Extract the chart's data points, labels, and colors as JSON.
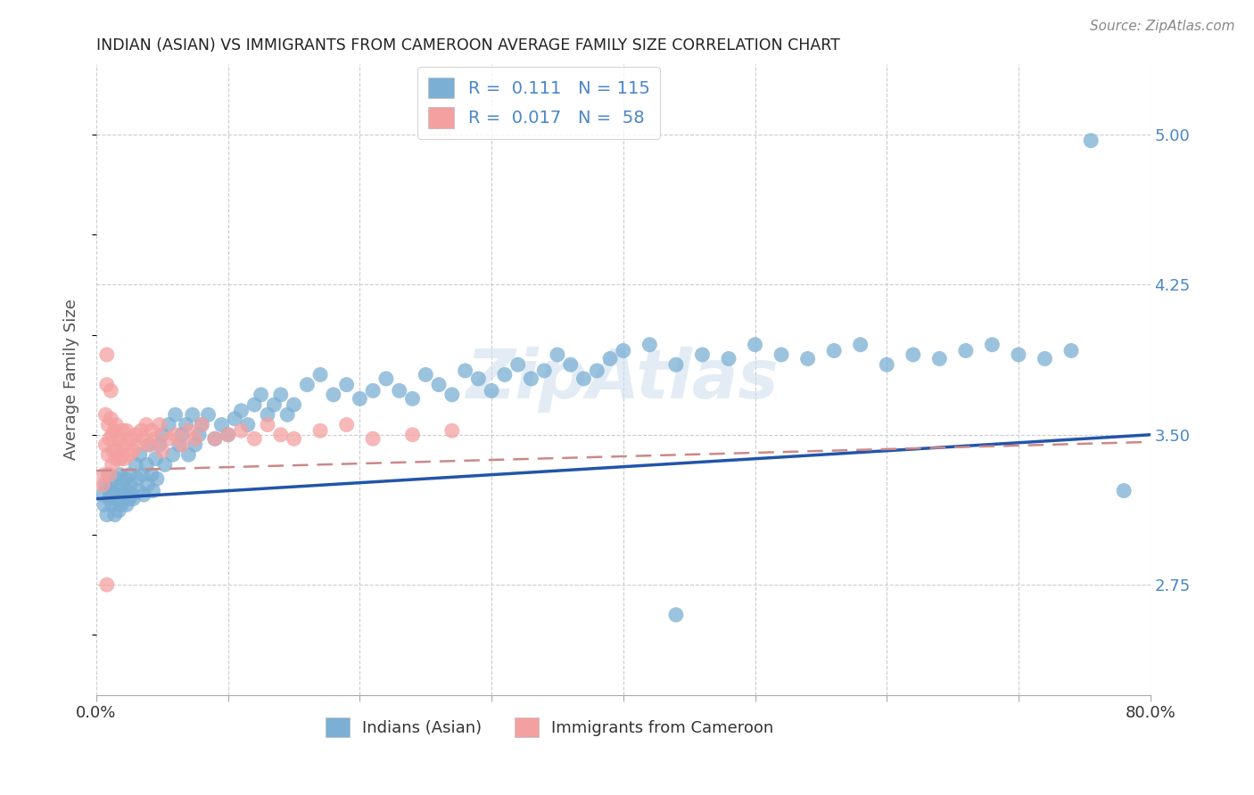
{
  "title": "INDIAN (ASIAN) VS IMMIGRANTS FROM CAMEROON AVERAGE FAMILY SIZE CORRELATION CHART",
  "source": "Source: ZipAtlas.com",
  "ylabel": "Average Family Size",
  "xlim": [
    0.0,
    0.8
  ],
  "ylim": [
    2.2,
    5.35
  ],
  "yticks": [
    2.75,
    3.5,
    4.25,
    5.0
  ],
  "xticks": [
    0.0,
    0.1,
    0.2,
    0.3,
    0.4,
    0.5,
    0.6,
    0.7,
    0.8
  ],
  "xtick_labels": [
    "0.0%",
    "",
    "",
    "",
    "",
    "",
    "",
    "",
    "80.0%"
  ],
  "color_blue": "#7bafd4",
  "color_pink": "#f4a0a0",
  "color_blue_text": "#4a86c8",
  "trend_blue": "#2255aa",
  "trend_pink": "#cc8888",
  "legend_label_blue": "Indians (Asian)",
  "legend_label_pink": "Immigrants from Cameroon",
  "grid_color": "#cccccc",
  "background_color": "#ffffff",
  "R_blue": 0.111,
  "N_blue": 115,
  "R_pink": 0.017,
  "N_pink": 58,
  "blue_x": [
    0.005,
    0.006,
    0.007,
    0.008,
    0.009,
    0.01,
    0.01,
    0.011,
    0.012,
    0.013,
    0.014,
    0.015,
    0.015,
    0.016,
    0.017,
    0.018,
    0.018,
    0.019,
    0.02,
    0.02,
    0.021,
    0.022,
    0.023,
    0.024,
    0.025,
    0.025,
    0.026,
    0.027,
    0.028,
    0.03,
    0.031,
    0.032,
    0.033,
    0.035,
    0.036,
    0.038,
    0.039,
    0.04,
    0.042,
    0.043,
    0.045,
    0.046,
    0.048,
    0.05,
    0.052,
    0.055,
    0.058,
    0.06,
    0.063,
    0.065,
    0.068,
    0.07,
    0.073,
    0.075,
    0.078,
    0.08,
    0.085,
    0.09,
    0.095,
    0.1,
    0.105,
    0.11,
    0.115,
    0.12,
    0.125,
    0.13,
    0.135,
    0.14,
    0.145,
    0.15,
    0.16,
    0.17,
    0.18,
    0.19,
    0.2,
    0.21,
    0.22,
    0.23,
    0.24,
    0.25,
    0.26,
    0.27,
    0.28,
    0.29,
    0.3,
    0.31,
    0.32,
    0.33,
    0.34,
    0.35,
    0.36,
    0.37,
    0.38,
    0.39,
    0.4,
    0.42,
    0.44,
    0.46,
    0.48,
    0.5,
    0.52,
    0.54,
    0.56,
    0.58,
    0.6,
    0.62,
    0.64,
    0.66,
    0.68,
    0.7,
    0.72,
    0.74,
    0.755,
    0.78,
    0.44
  ],
  "blue_y": [
    3.2,
    3.15,
    3.25,
    3.1,
    3.3,
    3.22,
    3.18,
    3.25,
    3.15,
    3.2,
    3.1,
    3.28,
    3.18,
    3.22,
    3.12,
    3.2,
    3.3,
    3.15,
    3.25,
    3.18,
    3.2,
    3.28,
    3.15,
    3.22,
    3.3,
    3.18,
    3.25,
    3.2,
    3.18,
    3.35,
    3.28,
    3.22,
    3.4,
    3.3,
    3.2,
    3.35,
    3.25,
    3.45,
    3.3,
    3.22,
    3.38,
    3.28,
    3.45,
    3.5,
    3.35,
    3.55,
    3.4,
    3.6,
    3.45,
    3.5,
    3.55,
    3.4,
    3.6,
    3.45,
    3.5,
    3.55,
    3.6,
    3.48,
    3.55,
    3.5,
    3.58,
    3.62,
    3.55,
    3.65,
    3.7,
    3.6,
    3.65,
    3.7,
    3.6,
    3.65,
    3.75,
    3.8,
    3.7,
    3.75,
    3.68,
    3.72,
    3.78,
    3.72,
    3.68,
    3.8,
    3.75,
    3.7,
    3.82,
    3.78,
    3.72,
    3.8,
    3.85,
    3.78,
    3.82,
    3.9,
    3.85,
    3.78,
    3.82,
    3.88,
    3.92,
    3.95,
    3.85,
    3.9,
    3.88,
    3.95,
    3.9,
    3.88,
    3.92,
    3.95,
    3.85,
    3.9,
    3.88,
    3.92,
    3.95,
    3.9,
    3.88,
    3.92,
    4.97,
    3.22,
    2.6
  ],
  "pink_x": [
    0.005,
    0.006,
    0.007,
    0.007,
    0.008,
    0.008,
    0.009,
    0.009,
    0.01,
    0.01,
    0.011,
    0.011,
    0.012,
    0.012,
    0.013,
    0.014,
    0.015,
    0.015,
    0.016,
    0.017,
    0.018,
    0.019,
    0.02,
    0.021,
    0.022,
    0.023,
    0.025,
    0.026,
    0.028,
    0.03,
    0.032,
    0.034,
    0.036,
    0.038,
    0.04,
    0.042,
    0.045,
    0.048,
    0.05,
    0.055,
    0.06,
    0.065,
    0.07,
    0.075,
    0.08,
    0.09,
    0.1,
    0.11,
    0.12,
    0.13,
    0.14,
    0.15,
    0.17,
    0.19,
    0.21,
    0.24,
    0.27,
    0.008
  ],
  "pink_y": [
    3.25,
    3.3,
    3.45,
    3.6,
    3.75,
    3.9,
    3.4,
    3.55,
    3.3,
    3.48,
    3.58,
    3.72,
    3.35,
    3.5,
    3.42,
    3.52,
    3.38,
    3.55,
    3.42,
    3.48,
    3.38,
    3.45,
    3.52,
    3.38,
    3.45,
    3.52,
    3.4,
    3.48,
    3.42,
    3.5,
    3.45,
    3.52,
    3.48,
    3.55,
    3.45,
    3.52,
    3.48,
    3.55,
    3.42,
    3.48,
    3.5,
    3.45,
    3.52,
    3.48,
    3.55,
    3.48,
    3.5,
    3.52,
    3.48,
    3.55,
    3.5,
    3.48,
    3.52,
    3.55,
    3.48,
    3.5,
    3.52,
    2.75
  ]
}
